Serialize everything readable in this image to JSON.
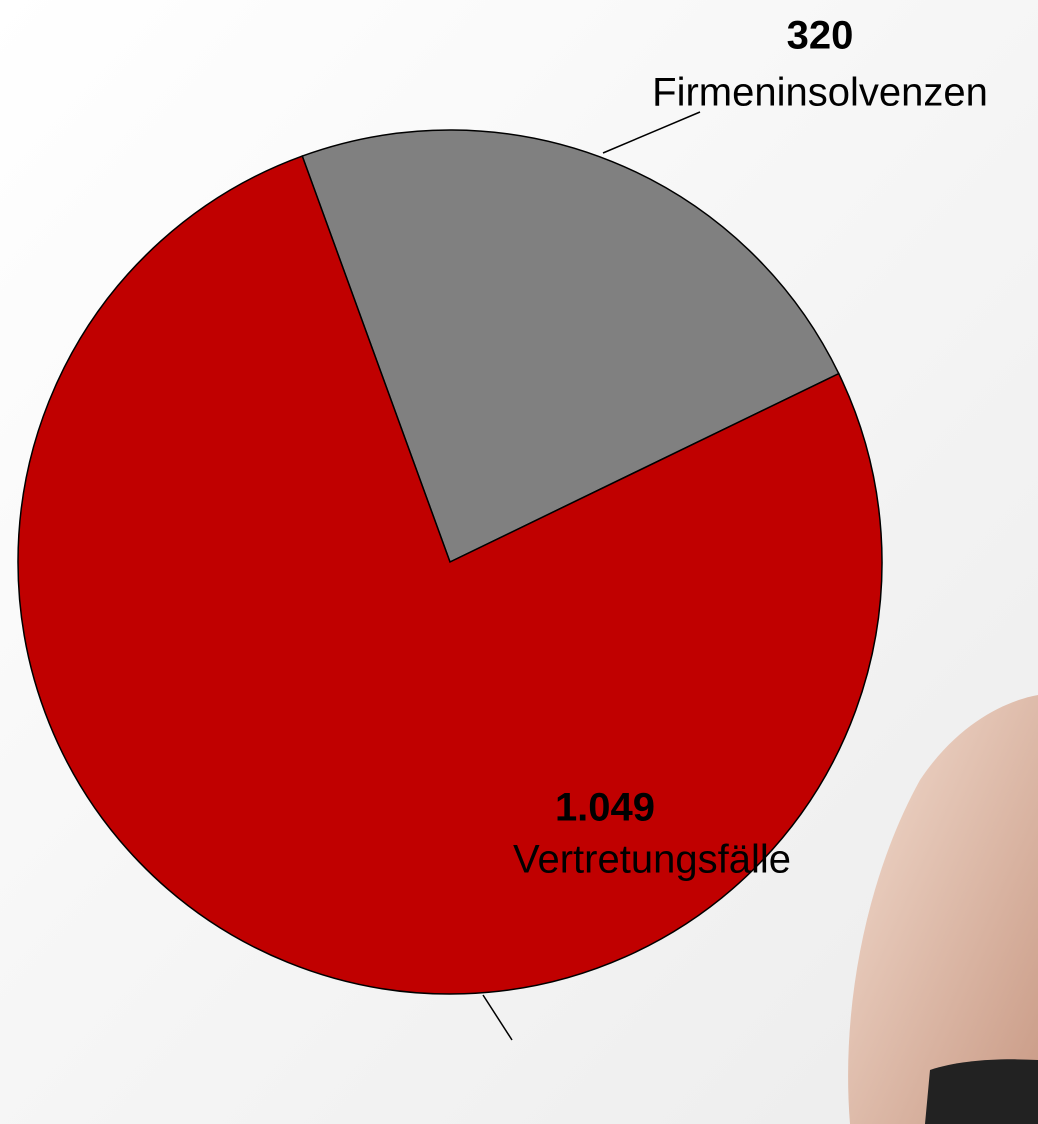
{
  "chart_data": {
    "type": "pie",
    "categories": [
      "Firmeninsolvenzen",
      "Vertretungsfälle"
    ],
    "values": [
      320,
      1049
    ],
    "value_labels": [
      "320",
      "1.049"
    ],
    "colors": [
      "#808080",
      "#c00000"
    ]
  }
}
